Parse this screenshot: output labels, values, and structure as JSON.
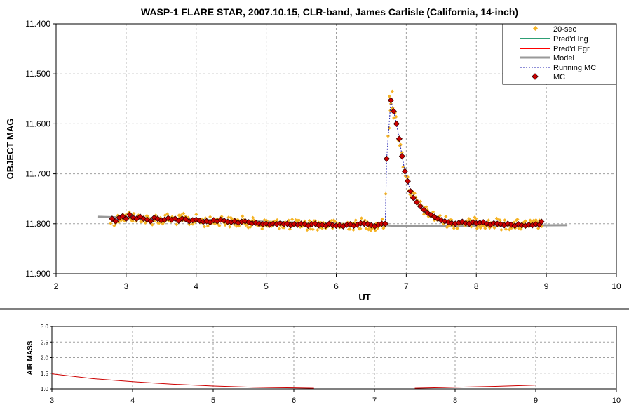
{
  "chart_data": [
    {
      "type": "scatter",
      "title": "WASP-1 FLARE STAR, 2007.10.15, CLR-band, James Carlisle (California, 14-inch)",
      "xlabel": "UT",
      "ylabel": "OBJECT MAG",
      "xlim": [
        2,
        10
      ],
      "ylim": [
        11.4,
        11.9
      ],
      "y_inverted": true,
      "x_ticks": [
        2,
        3,
        4,
        5,
        6,
        7,
        8,
        9,
        10
      ],
      "y_ticks": [
        "11.400",
        "11.500",
        "11.600",
        "11.700",
        "11.800",
        "11.900"
      ],
      "y_tick_values": [
        11.4,
        11.5,
        11.6,
        11.7,
        11.8,
        11.9
      ],
      "grid": true,
      "legend_position": "top-right",
      "legend": [
        "20-sec",
        "Pred'd Ing",
        "Pred'd Egr",
        "Model",
        "Running MC",
        "MC"
      ],
      "colors": {
        "20-sec": "#f5b324",
        "pred_ing": "#2e9e74",
        "pred_egr": "#ff0000",
        "model": "#999999",
        "running_mc": "#1f1fb0",
        "mc_fill": "#cc0000",
        "mc_edge": "#330000",
        "grid": "#a0a0a0"
      },
      "series": [
        {
          "name": "Model",
          "x": [
            2.6,
            6.7,
            6.8,
            7.5,
            9.3
          ],
          "y": [
            11.786,
            11.803,
            11.804,
            11.804,
            11.803
          ]
        },
        {
          "name": "MC",
          "x": [
            2.8,
            2.85,
            2.9,
            2.95,
            3.0,
            3.05,
            3.1,
            3.15,
            3.2,
            3.25,
            3.3,
            3.35,
            3.4,
            3.45,
            3.5,
            3.55,
            3.6,
            3.65,
            3.7,
            3.75,
            3.8,
            3.85,
            3.9,
            3.95,
            4.0,
            4.05,
            4.1,
            4.15,
            4.2,
            4.25,
            4.3,
            4.35,
            4.4,
            4.45,
            4.5,
            4.55,
            4.6,
            4.65,
            4.7,
            4.75,
            4.8,
            4.85,
            4.9,
            4.95,
            5.0,
            5.05,
            5.1,
            5.15,
            5.2,
            5.25,
            5.3,
            5.35,
            5.4,
            5.45,
            5.5,
            5.55,
            5.6,
            5.65,
            5.7,
            5.75,
            5.8,
            5.85,
            5.9,
            5.95,
            6.0,
            6.05,
            6.1,
            6.15,
            6.2,
            6.25,
            6.3,
            6.35,
            6.4,
            6.45,
            6.5,
            6.55,
            6.6,
            6.65,
            6.7,
            6.72,
            6.78,
            6.82,
            6.86,
            6.9,
            6.94,
            6.98,
            7.02,
            7.06,
            7.1,
            7.15,
            7.2,
            7.25,
            7.3,
            7.35,
            7.4,
            7.45,
            7.5,
            7.55,
            7.6,
            7.65,
            7.7,
            7.75,
            7.8,
            7.85,
            7.9,
            7.95,
            8.0,
            8.05,
            8.1,
            8.15,
            8.2,
            8.25,
            8.3,
            8.35,
            8.4,
            8.45,
            8.5,
            8.55,
            8.6,
            8.65,
            8.7,
            8.75,
            8.8,
            8.85,
            8.9,
            8.93
          ],
          "y": [
            11.79,
            11.795,
            11.788,
            11.785,
            11.79,
            11.782,
            11.788,
            11.79,
            11.786,
            11.79,
            11.792,
            11.795,
            11.788,
            11.79,
            11.793,
            11.792,
            11.789,
            11.792,
            11.79,
            11.794,
            11.79,
            11.791,
            11.795,
            11.793,
            11.792,
            11.794,
            11.796,
            11.795,
            11.797,
            11.793,
            11.795,
            11.792,
            11.794,
            11.796,
            11.797,
            11.795,
            11.798,
            11.796,
            11.795,
            11.797,
            11.799,
            11.798,
            11.8,
            11.801,
            11.8,
            11.802,
            11.8,
            11.801,
            11.799,
            11.801,
            11.8,
            11.803,
            11.801,
            11.802,
            11.8,
            11.801,
            11.804,
            11.801,
            11.8,
            11.803,
            11.802,
            11.804,
            11.8,
            11.803,
            11.804,
            11.803,
            11.805,
            11.802,
            11.801,
            11.804,
            11.802,
            11.799,
            11.8,
            11.801,
            11.803,
            11.805,
            11.802,
            11.8,
            11.8,
            11.67,
            11.553,
            11.575,
            11.6,
            11.63,
            11.665,
            11.695,
            11.715,
            11.735,
            11.748,
            11.757,
            11.765,
            11.772,
            11.778,
            11.782,
            11.786,
            11.79,
            11.793,
            11.795,
            11.797,
            11.799,
            11.8,
            11.798,
            11.796,
            11.799,
            11.8,
            11.797,
            11.799,
            11.798,
            11.797,
            11.8,
            11.802,
            11.799,
            11.8,
            11.801,
            11.803,
            11.8,
            11.802,
            11.804,
            11.801,
            11.803,
            11.804,
            11.802,
            11.803,
            11.801,
            11.802,
            11.796
          ]
        }
      ],
      "note_20sec": "dense 20-sec points scatter around MC values (approx. ±0.01 mag), peak near 11.535 at UT 6.80"
    },
    {
      "type": "line",
      "ylabel": "AIR MASS",
      "xlim": [
        3,
        10
      ],
      "ylim": [
        1.0,
        3.0
      ],
      "x_ticks": [
        3,
        4,
        5,
        6,
        7,
        8,
        9,
        10
      ],
      "y_ticks": [
        "1.0",
        "1.5",
        "2.0",
        "2.5",
        "3.0"
      ],
      "y_tick_values": [
        1.0,
        1.5,
        2.0,
        2.5,
        3.0
      ],
      "grid": true,
      "series": [
        {
          "x": [
            3.0,
            3.5,
            4.0,
            4.5,
            5.0,
            5.5,
            6.0,
            6.25,
            7.5,
            8.0,
            8.5,
            9.0
          ],
          "y": [
            1.48,
            1.33,
            1.23,
            1.15,
            1.09,
            1.05,
            1.03,
            1.02,
            1.02,
            1.05,
            1.08,
            1.12
          ]
        }
      ]
    }
  ]
}
